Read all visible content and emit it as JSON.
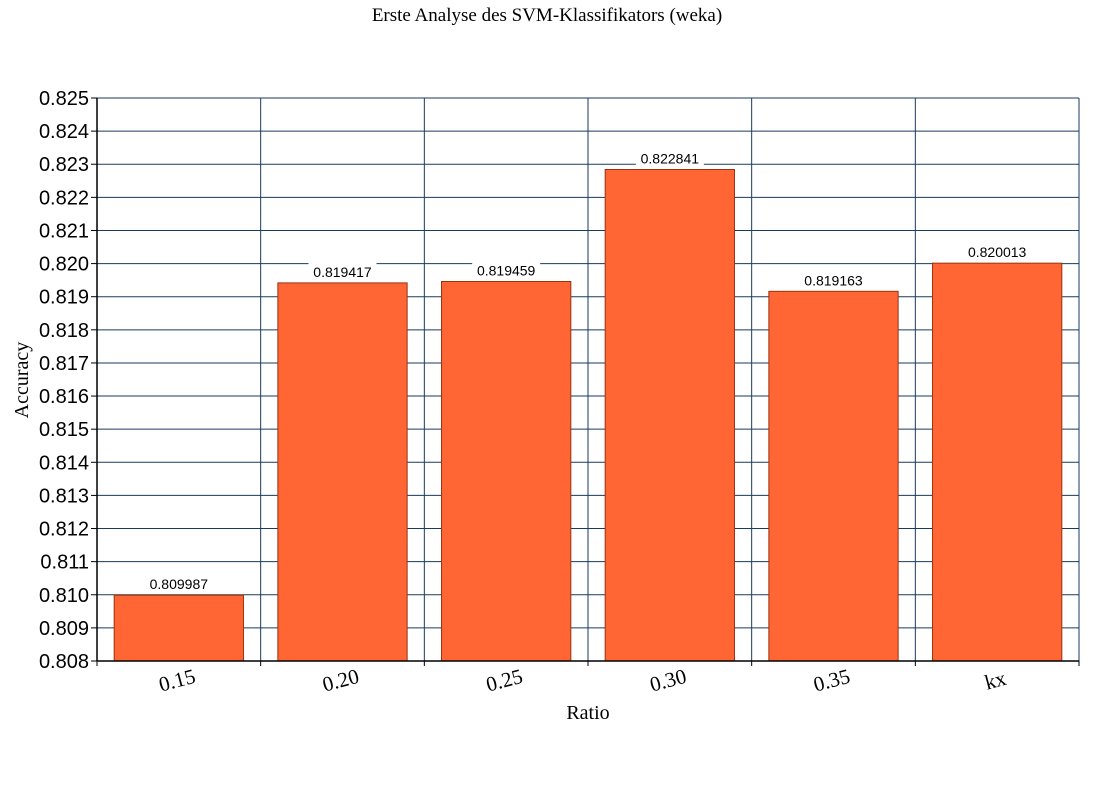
{
  "chart_data": {
    "type": "bar",
    "title": "Erste Analyse des SVM-Klassifikators (weka)",
    "xlabel": "Ratio",
    "ylabel": "Accuracy",
    "categories": [
      "0.15",
      "0.20",
      "0.25",
      "0.30",
      "0.35",
      "kx"
    ],
    "values": [
      0.809987,
      0.819417,
      0.819459,
      0.822841,
      0.819163,
      0.820013
    ],
    "data_labels": [
      "0.809987",
      "0.819417",
      "0.819459",
      "0.822841",
      "0.819163",
      "0.820013"
    ],
    "ylim": [
      0.808,
      0.825
    ],
    "yticks": [
      "0.808",
      "0.809",
      "0.810",
      "0.811",
      "0.812",
      "0.813",
      "0.814",
      "0.815",
      "0.816",
      "0.817",
      "0.818",
      "0.819",
      "0.820",
      "0.821",
      "0.822",
      "0.823",
      "0.824",
      "0.825"
    ],
    "grid": true,
    "legend": "none",
    "colors": {
      "bar_fill": "#ff6633",
      "bar_stroke": "#993311",
      "grid": "#1a3a5c",
      "axis": "#000000"
    }
  }
}
